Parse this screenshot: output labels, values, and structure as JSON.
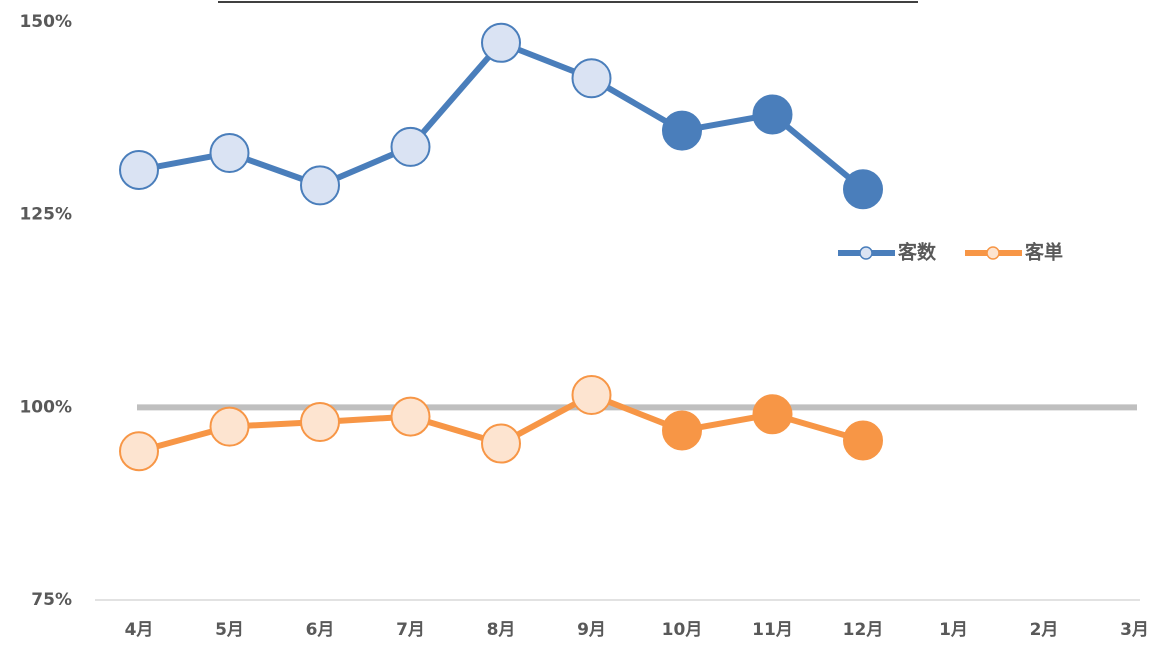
{
  "chart_data": {
    "type": "line",
    "categories": [
      "4月",
      "5月",
      "6月",
      "7月",
      "8月",
      "9月",
      "10月",
      "11月",
      "12月",
      "1月",
      "2月",
      "3月"
    ],
    "series": [
      {
        "name": "客数",
        "color": "#4a7ebb",
        "values": [
          130.8,
          133.0,
          128.8,
          133.8,
          147.3,
          142.7,
          135.9,
          138.0,
          128.3,
          null,
          null,
          null
        ],
        "marker_colors": [
          "#dae3f3",
          "#dae3f3",
          "#dae3f3",
          "#dae3f3",
          "#dae3f3",
          "#dae3f3",
          "#4a7ebb",
          "#4a7ebb",
          "#4a7ebb",
          null,
          null,
          null
        ]
      },
      {
        "name": "客単",
        "color": "#f79646",
        "values": [
          94.3,
          97.5,
          98.1,
          98.8,
          95.3,
          101.6,
          97.0,
          99.1,
          95.7,
          null,
          null,
          null
        ],
        "marker_colors": [
          "#fde4d0",
          "#fde4d0",
          "#fde4d0",
          "#fde4d0",
          "#fde4d0",
          "#fde4d0",
          "#f79646",
          "#f79646",
          "#f79646",
          null,
          null,
          null
        ]
      }
    ],
    "ylim": [
      75,
      150
    ],
    "yticks": [
      {
        "value": 75,
        "label": "75%"
      },
      {
        "value": 100,
        "label": "100%"
      },
      {
        "value": 125,
        "label": "125%"
      },
      {
        "value": 150,
        "label": "150%"
      }
    ],
    "reference_line": {
      "value": 100,
      "color": "#bfbfbf"
    },
    "legend": "right"
  }
}
